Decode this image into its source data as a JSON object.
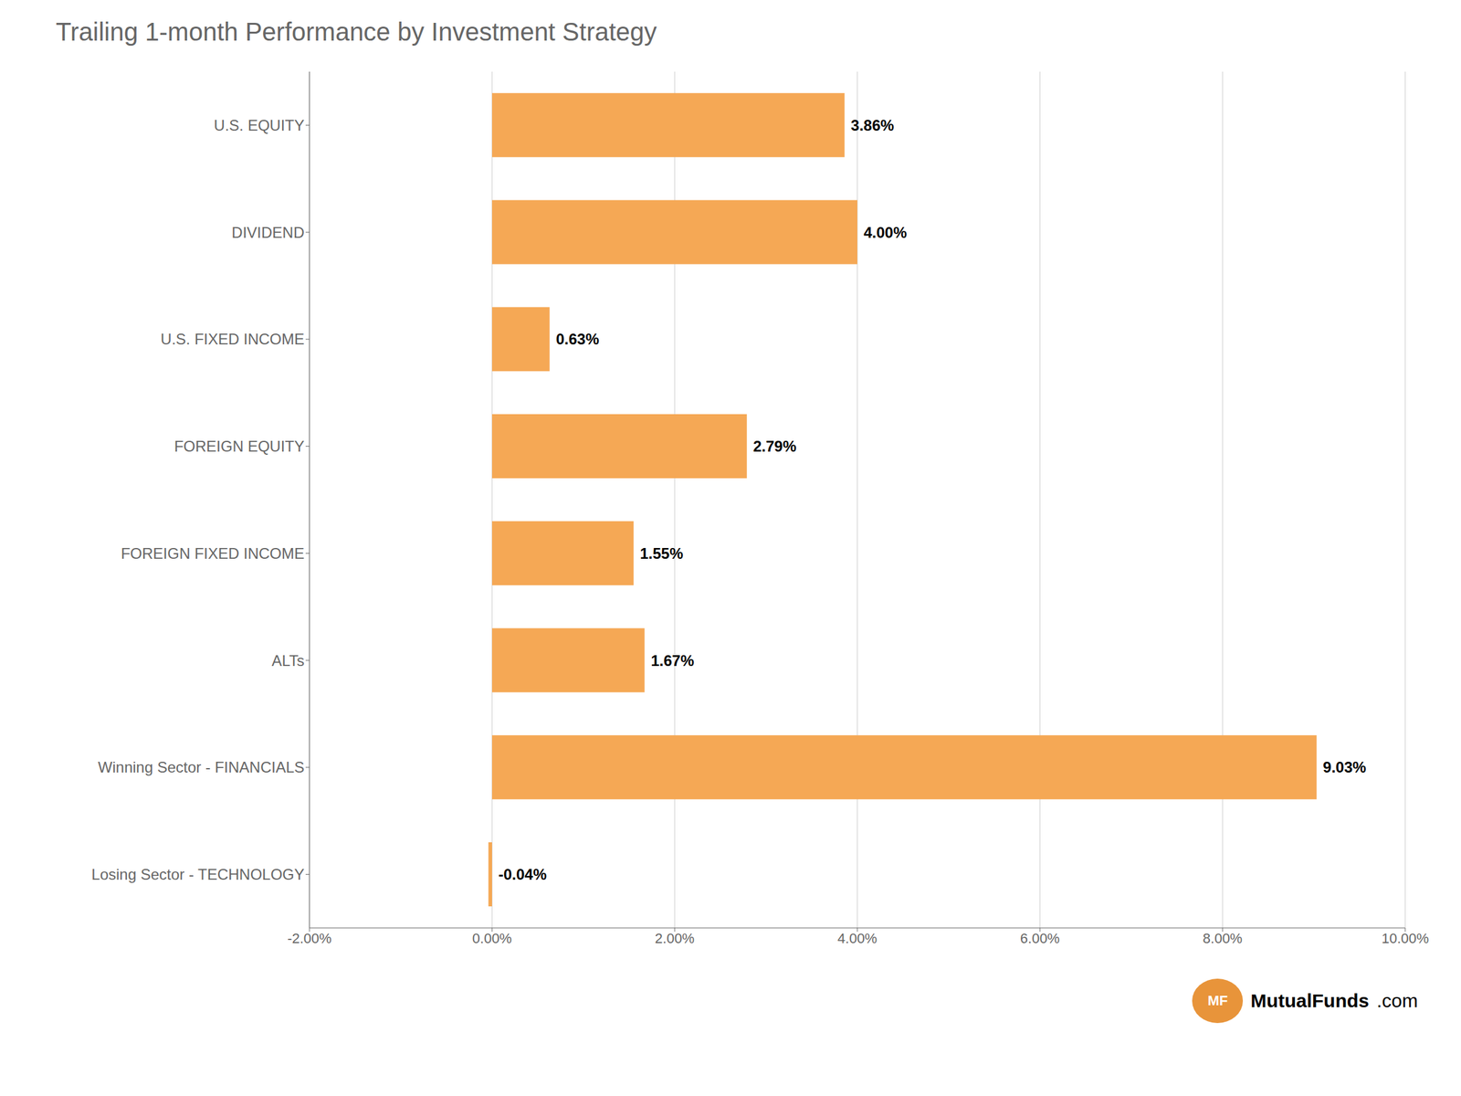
{
  "chart_data": {
    "type": "bar",
    "orientation": "horizontal",
    "title": "Trailing 1-month Performance by Investment Strategy",
    "categories": [
      "U.S. EQUITY",
      "DIVIDEND",
      "U.S. FIXED INCOME",
      "FOREIGN EQUITY",
      "FOREIGN FIXED INCOME",
      "ALTs",
      "Winning Sector - FINANCIALS",
      "Losing Sector - TECHNOLOGY"
    ],
    "values": [
      3.86,
      4.0,
      0.63,
      2.79,
      1.55,
      1.67,
      9.03,
      -0.04
    ],
    "value_labels": [
      "3.86%",
      "4.00%",
      "0.63%",
      "2.79%",
      "1.55%",
      "1.67%",
      "9.03%",
      "-0.04%"
    ],
    "data_labels": true,
    "color": "#F5A855",
    "xlim": [
      -2.0,
      10.0
    ],
    "xticks": [
      {
        "value": -2.0,
        "label": "-2.00%"
      },
      {
        "value": 0.0,
        "label": "0.00%"
      },
      {
        "value": 2.0,
        "label": "2.00%"
      },
      {
        "value": 4.0,
        "label": "4.00%"
      },
      {
        "value": 6.0,
        "label": "6.00%"
      },
      {
        "value": 8.0,
        "label": "8.00%"
      },
      {
        "value": 10.0,
        "label": "10.00%"
      }
    ],
    "grid": true,
    "annotations": [
      {
        "text": "MF",
        "color": "#E8943A"
      },
      {
        "text": "MutualFunds"
      },
      {
        "text": ".com"
      }
    ]
  }
}
